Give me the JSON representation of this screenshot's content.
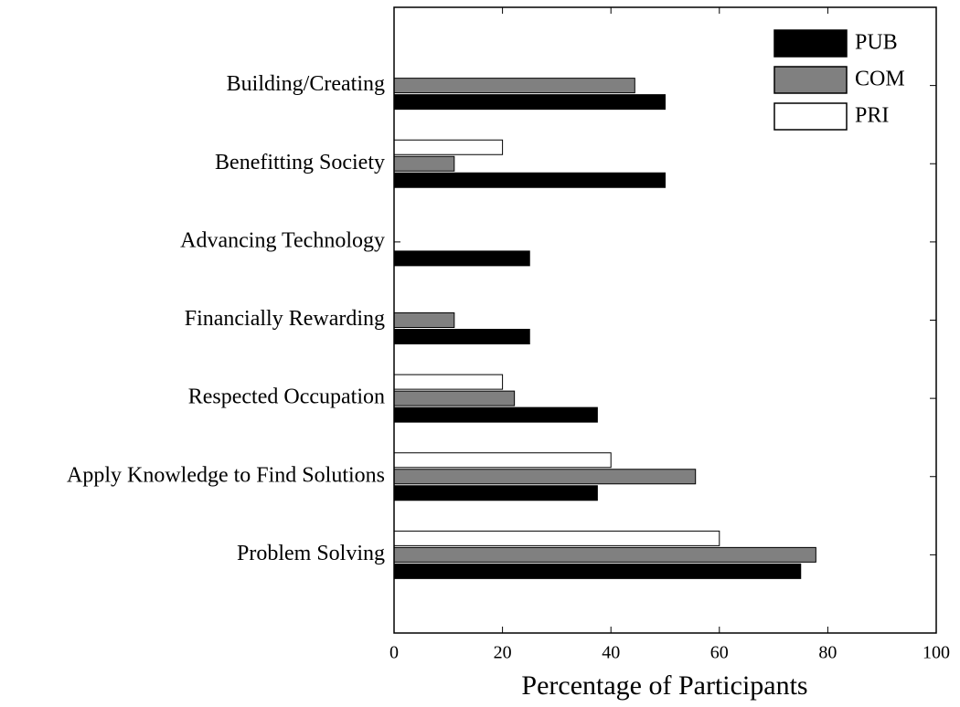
{
  "chart_data": {
    "type": "bar",
    "orientation": "horizontal",
    "categories": [
      "Building/Creating",
      "Benefitting Society",
      "Advancing Technology",
      "Financially Rewarding",
      "Respected Occupation",
      "Apply Knowledge to Find Solutions",
      "Problem Solving"
    ],
    "series": [
      {
        "name": "PUB",
        "color": "#000000",
        "values": [
          50,
          50,
          25,
          25,
          37.5,
          37.5,
          75
        ]
      },
      {
        "name": "COM",
        "color": "#808080",
        "values": [
          44.4,
          11.1,
          0,
          11.1,
          22.2,
          55.6,
          77.8
        ]
      },
      {
        "name": "PRI",
        "color": "#ffffff",
        "values": [
          0,
          20,
          0,
          0,
          20,
          40,
          60
        ]
      }
    ],
    "xlabel": "Percentage of Participants",
    "xlim": [
      0,
      100
    ],
    "xticks": [
      0,
      20,
      40,
      60,
      80,
      100
    ],
    "legend": "upper right"
  }
}
